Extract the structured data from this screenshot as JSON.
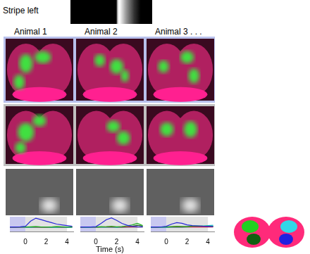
{
  "stimulus": {
    "label": "Stripe left"
  },
  "columns": [
    "Animal 1",
    "Animal 2",
    "Animal 3 . . ."
  ],
  "chart_data": [
    {
      "type": "line",
      "x": [
        -1.5,
        -1,
        -0.5,
        0,
        0.5,
        1,
        1.5,
        2,
        2.5,
        3,
        3.5,
        4,
        4.5
      ],
      "xlim": [
        -1.5,
        4.6
      ],
      "xticks": [
        0,
        2,
        4
      ],
      "ylim": [
        0,
        1
      ],
      "yticks": [],
      "tick_labels": "x",
      "grid": false,
      "shaded_regions": [
        {
          "from": -1.5,
          "to": 0,
          "color": "#c8c8f0"
        },
        {
          "from": 0,
          "to": 4,
          "color": "#e2e2e2"
        }
      ],
      "series": [
        {
          "color": "#2828d8",
          "values": [
            0.3,
            0.3,
            0.32,
            0.35,
            0.7,
            0.9,
            0.8,
            0.7,
            0.6,
            0.5,
            0.45,
            0.4,
            0.35
          ]
        },
        {
          "color": "#20b020",
          "values": [
            0.3,
            0.31,
            0.3,
            0.3,
            0.32,
            0.33,
            0.3,
            0.31,
            0.3,
            0.33,
            0.32,
            0.3,
            0.31
          ]
        },
        {
          "color": "#c02040",
          "values": [
            0.29,
            0.3,
            0.29,
            0.3,
            0.3,
            0.29,
            0.3,
            0.29,
            0.3,
            0.3,
            0.29,
            0.3,
            0.3
          ]
        },
        {
          "color": "#20c0d0",
          "values": [
            0.28,
            0.28,
            0.29,
            0.28,
            0.27,
            0.28,
            0.29,
            0.28,
            0.27,
            0.27,
            0.28,
            0.27,
            0.27
          ]
        },
        {
          "color": "#206020",
          "values": [
            0.31,
            0.3,
            0.31,
            0.31,
            0.3,
            0.32,
            0.31,
            0.3,
            0.31,
            0.32,
            0.31,
            0.3,
            0.31
          ]
        }
      ]
    },
    {
      "type": "line",
      "x": [
        -1.5,
        -1,
        -0.5,
        0,
        0.5,
        1,
        1.5,
        2,
        2.5,
        3,
        3.5,
        4,
        4.5
      ],
      "xlim": [
        -1.5,
        4.6
      ],
      "xticks": [
        0,
        2,
        4
      ],
      "ylim": [
        0,
        1
      ],
      "yticks": [],
      "tick_labels": "x",
      "grid": false,
      "x_label": "Time (s)",
      "shaded_regions": [
        {
          "from": -1.5,
          "to": 0,
          "color": "#c8c8f0"
        },
        {
          "from": 0,
          "to": 4,
          "color": "#e2e2e2"
        }
      ],
      "series": [
        {
          "color": "#2828d8",
          "values": [
            0.3,
            0.31,
            0.3,
            0.33,
            0.55,
            0.8,
            0.92,
            0.75,
            0.55,
            0.42,
            0.35,
            0.33,
            0.32
          ]
        },
        {
          "color": "#20b020",
          "values": [
            0.3,
            0.3,
            0.31,
            0.3,
            0.32,
            0.33,
            0.35,
            0.32,
            0.33,
            0.38,
            0.45,
            0.55,
            0.4
          ]
        },
        {
          "color": "#c02040",
          "values": [
            0.29,
            0.3,
            0.3,
            0.29,
            0.3,
            0.3,
            0.31,
            0.3,
            0.29,
            0.3,
            0.3,
            0.31,
            0.3
          ]
        },
        {
          "color": "#20c0d0",
          "values": [
            0.28,
            0.27,
            0.28,
            0.28,
            0.29,
            0.28,
            0.28,
            0.27,
            0.28,
            0.29,
            0.3,
            0.31,
            0.3
          ]
        },
        {
          "color": "#206020",
          "values": [
            0.31,
            0.31,
            0.3,
            0.31,
            0.32,
            0.31,
            0.3,
            0.31,
            0.32,
            0.33,
            0.35,
            0.42,
            0.36
          ]
        }
      ]
    },
    {
      "type": "line",
      "x": [
        -1.5,
        -1,
        -0.5,
        0,
        0.5,
        1,
        1.5,
        2,
        2.5,
        3,
        3.5,
        4,
        4.5
      ],
      "xlim": [
        -1.5,
        4.6
      ],
      "xticks": [
        0,
        2,
        4
      ],
      "ylim": [
        0,
        1
      ],
      "yticks": [],
      "tick_labels": "x",
      "grid": false,
      "shaded_regions": [
        {
          "from": -1.5,
          "to": 0,
          "color": "#c8c8f0"
        },
        {
          "from": 0,
          "to": 4,
          "color": "#e2e2e2"
        }
      ],
      "series": [
        {
          "color": "#2828d8",
          "values": [
            0.3,
            0.3,
            0.31,
            0.35,
            0.5,
            0.6,
            0.55,
            0.45,
            0.4,
            0.38,
            0.36,
            0.35,
            0.34
          ]
        },
        {
          "color": "#20b020",
          "values": [
            0.3,
            0.31,
            0.3,
            0.31,
            0.33,
            0.35,
            0.34,
            0.33,
            0.36,
            0.38,
            0.37,
            0.36,
            0.35
          ]
        },
        {
          "color": "#c02040",
          "values": [
            0.3,
            0.29,
            0.3,
            0.3,
            0.31,
            0.3,
            0.3,
            0.31,
            0.3,
            0.3,
            0.31,
            0.3,
            0.3
          ]
        },
        {
          "color": "#20c0d0",
          "values": [
            0.27,
            0.27,
            0.28,
            0.27,
            0.28,
            0.29,
            0.28,
            0.3,
            0.32,
            0.34,
            0.37,
            0.4,
            0.42
          ]
        },
        {
          "color": "#206020",
          "values": [
            0.31,
            0.3,
            0.31,
            0.31,
            0.32,
            0.33,
            0.32,
            0.33,
            0.34,
            0.35,
            0.34,
            0.35,
            0.36
          ]
        }
      ]
    }
  ]
}
